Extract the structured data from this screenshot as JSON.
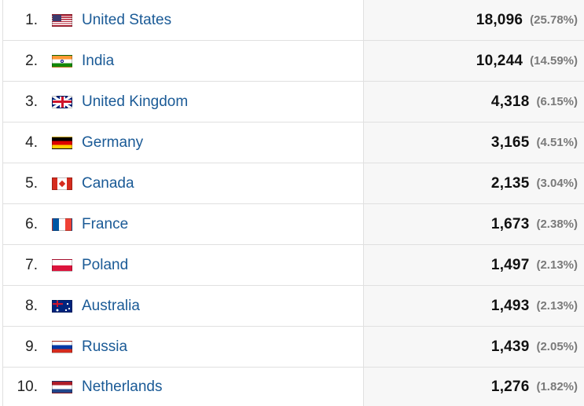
{
  "rows": [
    {
      "rank": "1.",
      "country": "United States",
      "value": "18,096",
      "percent": "(25.78%)",
      "flag": "us-flag-icon",
      "share": 0.2578
    },
    {
      "rank": "2.",
      "country": "India",
      "value": "10,244",
      "percent": "(14.59%)",
      "flag": "india-flag-icon",
      "share": 0.1459
    },
    {
      "rank": "3.",
      "country": "United Kingdom",
      "value": "4,318",
      "percent": "(6.15%)",
      "flag": "uk-flag-icon",
      "share": 0.0615
    },
    {
      "rank": "4.",
      "country": "Germany",
      "value": "3,165",
      "percent": "(4.51%)",
      "flag": "germany-flag-icon",
      "share": 0.0451
    },
    {
      "rank": "5.",
      "country": "Canada",
      "value": "2,135",
      "percent": "(3.04%)",
      "flag": "canada-flag-icon",
      "share": 0.0304
    },
    {
      "rank": "6.",
      "country": "France",
      "value": "1,673",
      "percent": "(2.38%)",
      "flag": "france-flag-icon",
      "share": 0.0238
    },
    {
      "rank": "7.",
      "country": "Poland",
      "value": "1,497",
      "percent": "(2.13%)",
      "flag": "poland-flag-icon",
      "share": 0.0213
    },
    {
      "rank": "8.",
      "country": "Australia",
      "value": "1,493",
      "percent": "(2.13%)",
      "flag": "australia-flag-icon",
      "share": 0.0213
    },
    {
      "rank": "9.",
      "country": "Russia",
      "value": "1,439",
      "percent": "(2.05%)",
      "flag": "russia-flag-icon",
      "share": 0.0205
    },
    {
      "rank": "10.",
      "country": "Netherlands",
      "value": "1,276",
      "percent": "(1.82%)",
      "flag": "netherlands-flag-icon",
      "share": 0.0182
    }
  ],
  "colors": {
    "link": "#1a5a96",
    "value_bg": "#f7f7f7",
    "border": "#e0e0e0",
    "percent": "#7a7a7a"
  }
}
